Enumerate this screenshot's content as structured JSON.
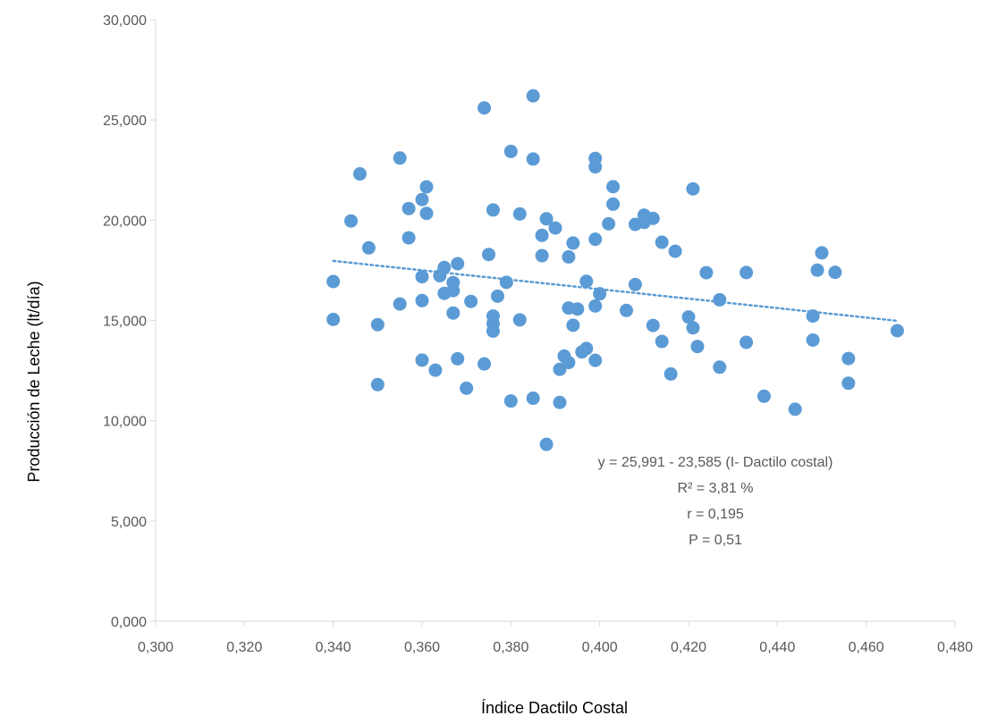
{
  "chart_data": {
    "type": "scatter",
    "xlabel": "Índice Dactilo Costal",
    "ylabel": "Producción de Leche (lt/día)",
    "xlim": [
      0.3,
      0.48
    ],
    "ylim": [
      0,
      30
    ],
    "x_ticks": [
      "0,300",
      "0,320",
      "0,340",
      "0,360",
      "0,380",
      "0,400",
      "0,420",
      "0,440",
      "0,460",
      "0,480"
    ],
    "y_ticks": [
      "0,000",
      "5,000",
      "10,000",
      "15,000",
      "20,000",
      "25,000",
      "30,000"
    ],
    "x_tick_values": [
      0.3,
      0.32,
      0.34,
      0.36,
      0.38,
      0.4,
      0.42,
      0.44,
      0.46,
      0.48
    ],
    "y_tick_values": [
      0,
      5,
      10,
      15,
      20,
      25,
      30
    ],
    "grid": false,
    "marker_color": "#5B9BD5",
    "trendline": {
      "type": "linear",
      "style": "dotted",
      "color": "#5B9BD5",
      "x": [
        0.34,
        0.467
      ],
      "y": [
        17.97,
        14.98
      ]
    },
    "annotations": [
      "y = 25,991 - 23,585 (I- Dactilo costal)",
      "R² = 3,81 %",
      "r = 0,195",
      "P = 0,51"
    ],
    "series": [
      {
        "points": [
          [
            0.34,
            16.94
          ],
          [
            0.34,
            15.05
          ],
          [
            0.344,
            19.96
          ],
          [
            0.346,
            22.31
          ],
          [
            0.348,
            18.62
          ],
          [
            0.35,
            14.79
          ],
          [
            0.35,
            11.8
          ],
          [
            0.355,
            23.1
          ],
          [
            0.355,
            15.82
          ],
          [
            0.357,
            19.12
          ],
          [
            0.357,
            20.58
          ],
          [
            0.36,
            17.18
          ],
          [
            0.36,
            13.02
          ],
          [
            0.36,
            15.99
          ],
          [
            0.36,
            21.03
          ],
          [
            0.361,
            21.66
          ],
          [
            0.361,
            20.34
          ],
          [
            0.363,
            12.52
          ],
          [
            0.364,
            17.23
          ],
          [
            0.365,
            16.35
          ],
          [
            0.365,
            17.64
          ],
          [
            0.367,
            15.37
          ],
          [
            0.367,
            16.49
          ],
          [
            0.367,
            16.89
          ],
          [
            0.368,
            17.83
          ],
          [
            0.368,
            13.09
          ],
          [
            0.37,
            11.62
          ],
          [
            0.371,
            15.95
          ],
          [
            0.374,
            25.6
          ],
          [
            0.374,
            12.83
          ],
          [
            0.375,
            18.29
          ],
          [
            0.376,
            20.51
          ],
          [
            0.376,
            15.22
          ],
          [
            0.376,
            14.84
          ],
          [
            0.376,
            14.47
          ],
          [
            0.377,
            16.21
          ],
          [
            0.379,
            16.9
          ],
          [
            0.38,
            23.43
          ],
          [
            0.38,
            10.98
          ],
          [
            0.382,
            20.31
          ],
          [
            0.382,
            15.03
          ],
          [
            0.385,
            26.2
          ],
          [
            0.385,
            23.05
          ],
          [
            0.385,
            11.12
          ],
          [
            0.387,
            18.23
          ],
          [
            0.387,
            19.24
          ],
          [
            0.388,
            20.07
          ],
          [
            0.388,
            8.82
          ],
          [
            0.39,
            19.61
          ],
          [
            0.391,
            12.56
          ],
          [
            0.391,
            10.91
          ],
          [
            0.392,
            13.22
          ],
          [
            0.393,
            15.62
          ],
          [
            0.393,
            12.9
          ],
          [
            0.393,
            18.17
          ],
          [
            0.394,
            14.76
          ],
          [
            0.394,
            18.86
          ],
          [
            0.395,
            15.57
          ],
          [
            0.396,
            13.43
          ],
          [
            0.397,
            16.95
          ],
          [
            0.397,
            13.6
          ],
          [
            0.399,
            23.08
          ],
          [
            0.399,
            22.66
          ],
          [
            0.399,
            19.05
          ],
          [
            0.399,
            15.72
          ],
          [
            0.399,
            13.01
          ],
          [
            0.4,
            16.33
          ],
          [
            0.402,
            19.82
          ],
          [
            0.403,
            21.67
          ],
          [
            0.403,
            20.8
          ],
          [
            0.406,
            15.5
          ],
          [
            0.408,
            19.79
          ],
          [
            0.408,
            16.79
          ],
          [
            0.41,
            20.25
          ],
          [
            0.41,
            19.89
          ],
          [
            0.412,
            20.09
          ],
          [
            0.412,
            14.75
          ],
          [
            0.414,
            18.9
          ],
          [
            0.414,
            13.95
          ],
          [
            0.416,
            12.33
          ],
          [
            0.417,
            18.45
          ],
          [
            0.42,
            15.17
          ],
          [
            0.421,
            21.56
          ],
          [
            0.421,
            14.63
          ],
          [
            0.422,
            13.7
          ],
          [
            0.424,
            17.38
          ],
          [
            0.427,
            16.03
          ],
          [
            0.427,
            12.67
          ],
          [
            0.433,
            17.39
          ],
          [
            0.433,
            13.91
          ],
          [
            0.437,
            11.22
          ],
          [
            0.444,
            10.57
          ],
          [
            0.448,
            14.02
          ],
          [
            0.448,
            15.22
          ],
          [
            0.449,
            17.51
          ],
          [
            0.45,
            18.37
          ],
          [
            0.453,
            17.4
          ],
          [
            0.456,
            13.1
          ],
          [
            0.456,
            11.87
          ],
          [
            0.467,
            14.49
          ]
        ]
      }
    ]
  }
}
